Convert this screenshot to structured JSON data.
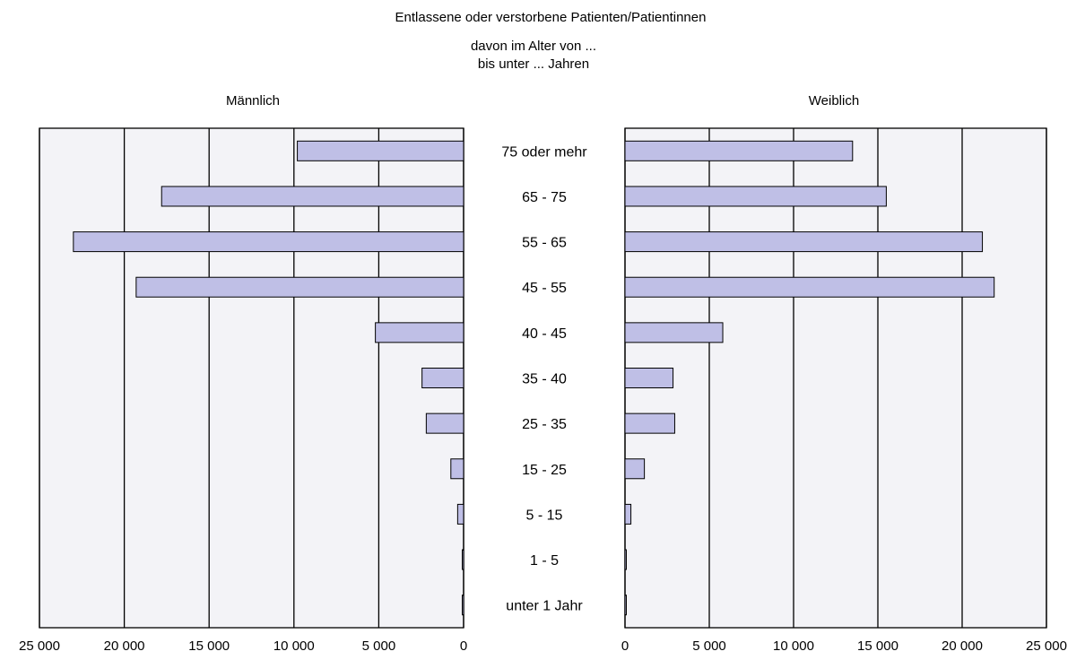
{
  "chart_data": {
    "type": "bar",
    "orientation": "horizontal",
    "layout": "population-pyramid",
    "title": "Entlassene oder verstorbene  Patienten/Patientinnen",
    "subtitle_line1": "davon  im Alter von ...",
    "subtitle_line2": "bis unter ... Jahren",
    "categories": [
      "75 oder mehr",
      "65 - 75",
      "55 - 65",
      "45 - 55",
      "40 - 45",
      "35 - 40",
      "25 - 35",
      "15 - 25",
      "5 - 15",
      "1 - 5",
      "unter 1 Jahr"
    ],
    "series": [
      {
        "name": "Männlich",
        "values": [
          9800,
          17800,
          23000,
          19300,
          5200,
          2450,
          2200,
          750,
          350,
          70,
          50
        ]
      },
      {
        "name": "Weiblich",
        "values": [
          13500,
          15500,
          21200,
          21900,
          5800,
          2850,
          2950,
          1150,
          350,
          80,
          40
        ]
      }
    ],
    "xlim": [
      0,
      25000
    ],
    "ticks": [
      "0",
      "5 000",
      "10 000",
      "15 000",
      "20 000",
      "25 000"
    ],
    "tick_values": [
      0,
      5000,
      10000,
      15000,
      20000,
      25000
    ],
    "grid": true,
    "colors": {
      "bar": "#bfbfe6",
      "plot_bg": "#f3f3f7",
      "line": "#000000"
    }
  }
}
